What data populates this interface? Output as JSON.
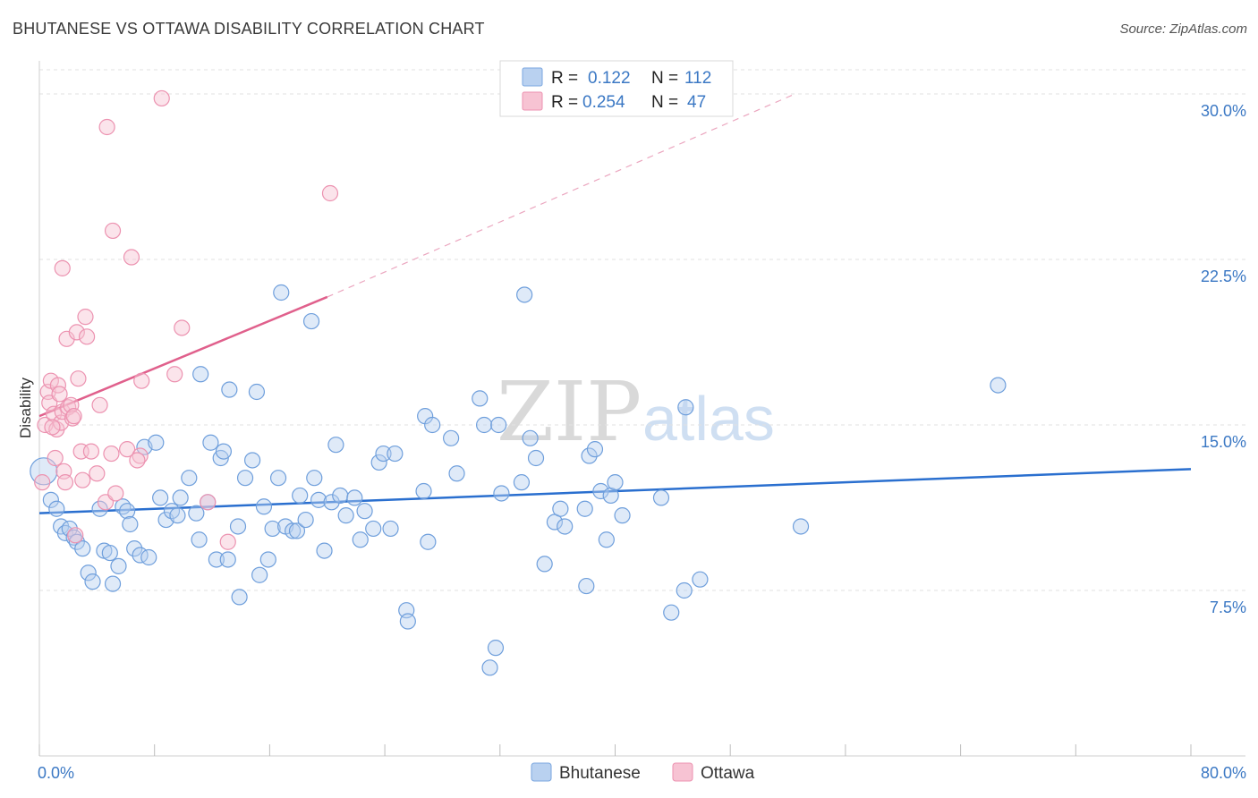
{
  "title": "BHUTANESE VS OTTAWA DISABILITY CORRELATION CHART",
  "source": "Source: ZipAtlas.com",
  "watermark": {
    "zip": "ZIP",
    "atlas": "atlas"
  },
  "colors": {
    "blue": "#3b78c4",
    "blue_fill": "#b9d1f0",
    "blue_line": "#2a6fcf",
    "pink": "#e8709a",
    "pink_fill": "#f7c3d3",
    "pink_line": "#e0608c",
    "grid": "#e2e2e2"
  },
  "legend": {
    "rows": [
      {
        "r_label": "R = ",
        "r_value": "0.122",
        "n_label": "N = ",
        "n_value": "112"
      },
      {
        "r_label": "R = ",
        "r_value": "0.254",
        "n_label": "N = ",
        "n_value": "47"
      }
    ]
  },
  "chart_data": {
    "type": "scatter",
    "title": "BHUTANESE VS OTTAWA DISABILITY CORRELATION CHART",
    "xlabel": "",
    "ylabel": "Disability",
    "xlim": [
      0,
      80
    ],
    "ylim": [
      0,
      31.5
    ],
    "x_tick_labels": [
      {
        "value": 0,
        "label": "0.0%"
      },
      {
        "value": 80,
        "label": "80.0%"
      }
    ],
    "y_ticks": [
      {
        "value": 7.5,
        "label": "7.5%"
      },
      {
        "value": 15,
        "label": "15.0%"
      },
      {
        "value": 22.5,
        "label": "22.5%"
      },
      {
        "value": 30,
        "label": "30.0%"
      }
    ],
    "x_minor_ticks": [
      0,
      8,
      16,
      24,
      32,
      40,
      48,
      56,
      64,
      72,
      80
    ],
    "series": [
      {
        "name": "Bhutanese",
        "color": "#3b78c4",
        "trend": {
          "x0": 0,
          "y0": 11.0,
          "x1": 80,
          "y1": 13.0
        },
        "points": [
          [
            0.3,
            12.9
          ],
          [
            0.8,
            11.6
          ],
          [
            1.2,
            11.2
          ],
          [
            1.5,
            10.4
          ],
          [
            1.8,
            10.1
          ],
          [
            2.1,
            10.3
          ],
          [
            2.4,
            9.9
          ],
          [
            2.6,
            9.7
          ],
          [
            3.0,
            9.4
          ],
          [
            3.4,
            8.3
          ],
          [
            3.7,
            7.9
          ],
          [
            4.2,
            11.2
          ],
          [
            4.5,
            9.3
          ],
          [
            4.9,
            9.2
          ],
          [
            5.1,
            7.8
          ],
          [
            5.5,
            8.6
          ],
          [
            5.8,
            11.3
          ],
          [
            6.1,
            11.1
          ],
          [
            6.3,
            10.5
          ],
          [
            6.6,
            9.4
          ],
          [
            7.0,
            9.1
          ],
          [
            7.3,
            14.0
          ],
          [
            7.6,
            9.0
          ],
          [
            8.1,
            14.2
          ],
          [
            8.4,
            11.7
          ],
          [
            8.8,
            10.7
          ],
          [
            9.2,
            11.1
          ],
          [
            9.6,
            10.9
          ],
          [
            9.8,
            11.7
          ],
          [
            10.4,
            12.6
          ],
          [
            10.9,
            11.0
          ],
          [
            11.1,
            9.8
          ],
          [
            11.2,
            17.3
          ],
          [
            11.7,
            11.5
          ],
          [
            11.9,
            14.2
          ],
          [
            12.3,
            8.9
          ],
          [
            12.6,
            13.5
          ],
          [
            12.8,
            13.8
          ],
          [
            13.1,
            8.9
          ],
          [
            13.2,
            16.6
          ],
          [
            13.8,
            10.4
          ],
          [
            13.9,
            7.2
          ],
          [
            14.3,
            12.6
          ],
          [
            14.8,
            13.4
          ],
          [
            15.1,
            16.5
          ],
          [
            15.3,
            8.2
          ],
          [
            15.6,
            11.3
          ],
          [
            15.9,
            8.9
          ],
          [
            16.2,
            10.3
          ],
          [
            16.6,
            12.6
          ],
          [
            16.8,
            21.0
          ],
          [
            17.1,
            10.4
          ],
          [
            17.6,
            10.2
          ],
          [
            17.9,
            10.2
          ],
          [
            18.1,
            11.8
          ],
          [
            18.5,
            10.7
          ],
          [
            18.9,
            19.7
          ],
          [
            19.1,
            12.6
          ],
          [
            19.4,
            11.6
          ],
          [
            19.8,
            9.3
          ],
          [
            20.3,
            11.5
          ],
          [
            20.6,
            14.1
          ],
          [
            20.9,
            11.8
          ],
          [
            21.3,
            10.9
          ],
          [
            21.9,
            11.7
          ],
          [
            22.3,
            9.8
          ],
          [
            22.6,
            11.1
          ],
          [
            23.2,
            10.3
          ],
          [
            23.6,
            13.3
          ],
          [
            23.9,
            13.7
          ],
          [
            24.4,
            10.3
          ],
          [
            24.7,
            13.7
          ],
          [
            25.5,
            6.6
          ],
          [
            25.6,
            6.1
          ],
          [
            26.7,
            12.0
          ],
          [
            26.8,
            15.4
          ],
          [
            27.0,
            9.7
          ],
          [
            27.3,
            15.0
          ],
          [
            28.6,
            14.4
          ],
          [
            29.0,
            12.8
          ],
          [
            30.6,
            16.2
          ],
          [
            30.9,
            15.0
          ],
          [
            31.3,
            4.0
          ],
          [
            31.9,
            15.0
          ],
          [
            32.1,
            11.9
          ],
          [
            31.7,
            4.9
          ],
          [
            33.5,
            12.4
          ],
          [
            33.7,
            20.9
          ],
          [
            34.1,
            14.4
          ],
          [
            34.5,
            13.5
          ],
          [
            35.1,
            8.7
          ],
          [
            35.8,
            10.6
          ],
          [
            36.2,
            11.2
          ],
          [
            36.5,
            10.4
          ],
          [
            37.9,
            11.2
          ],
          [
            38.0,
            7.7
          ],
          [
            38.2,
            13.6
          ],
          [
            38.6,
            13.9
          ],
          [
            39.0,
            12.0
          ],
          [
            39.4,
            9.8
          ],
          [
            39.7,
            11.8
          ],
          [
            40.0,
            12.4
          ],
          [
            40.5,
            10.9
          ],
          [
            43.2,
            11.7
          ],
          [
            43.9,
            6.5
          ],
          [
            44.9,
            15.8
          ],
          [
            44.8,
            7.5
          ],
          [
            45.9,
            8.0
          ],
          [
            66.6,
            16.8
          ],
          [
            52.9,
            10.4
          ]
        ]
      },
      {
        "name": "Ottawa",
        "color": "#e8709a",
        "trend": {
          "x0": 0,
          "y0": 15.4,
          "x1": 20,
          "y1": 20.8,
          "dash_x1": 52.5,
          "dash_y1": 30.0
        },
        "points": [
          [
            0.2,
            12.4
          ],
          [
            0.4,
            15.0
          ],
          [
            0.6,
            16.5
          ],
          [
            0.7,
            16.0
          ],
          [
            0.8,
            17.0
          ],
          [
            1.0,
            15.5
          ],
          [
            1.2,
            14.8
          ],
          [
            1.3,
            16.8
          ],
          [
            1.4,
            16.4
          ],
          [
            1.5,
            15.1
          ],
          [
            1.6,
            15.6
          ],
          [
            1.7,
            12.9
          ],
          [
            1.8,
            12.4
          ],
          [
            2.0,
            15.8
          ],
          [
            2.2,
            15.9
          ],
          [
            1.6,
            22.1
          ],
          [
            1.9,
            18.9
          ],
          [
            2.3,
            15.3
          ],
          [
            2.6,
            19.2
          ],
          [
            2.7,
            17.1
          ],
          [
            2.9,
            13.8
          ],
          [
            3.2,
            19.9
          ],
          [
            3.3,
            19.0
          ],
          [
            3.6,
            13.8
          ],
          [
            4.2,
            15.9
          ],
          [
            4.6,
            11.5
          ],
          [
            4.7,
            28.5
          ],
          [
            5.0,
            13.7
          ],
          [
            5.1,
            23.8
          ],
          [
            5.3,
            11.9
          ],
          [
            6.1,
            13.9
          ],
          [
            6.4,
            22.6
          ],
          [
            7.0,
            13.6
          ],
          [
            7.1,
            17.0
          ],
          [
            8.5,
            29.8
          ],
          [
            9.4,
            17.3
          ],
          [
            9.9,
            19.4
          ],
          [
            11.7,
            11.5
          ],
          [
            13.1,
            9.7
          ],
          [
            20.2,
            25.5
          ],
          [
            4.0,
            12.8
          ],
          [
            2.5,
            10.0
          ],
          [
            1.1,
            13.5
          ],
          [
            6.8,
            13.4
          ],
          [
            3.0,
            12.5
          ],
          [
            2.4,
            15.4
          ],
          [
            0.9,
            14.9
          ]
        ]
      }
    ]
  },
  "bottom_legend": [
    {
      "label": "Bhutanese",
      "color_key": "blue"
    },
    {
      "label": "Ottawa",
      "color_key": "pink"
    }
  ]
}
